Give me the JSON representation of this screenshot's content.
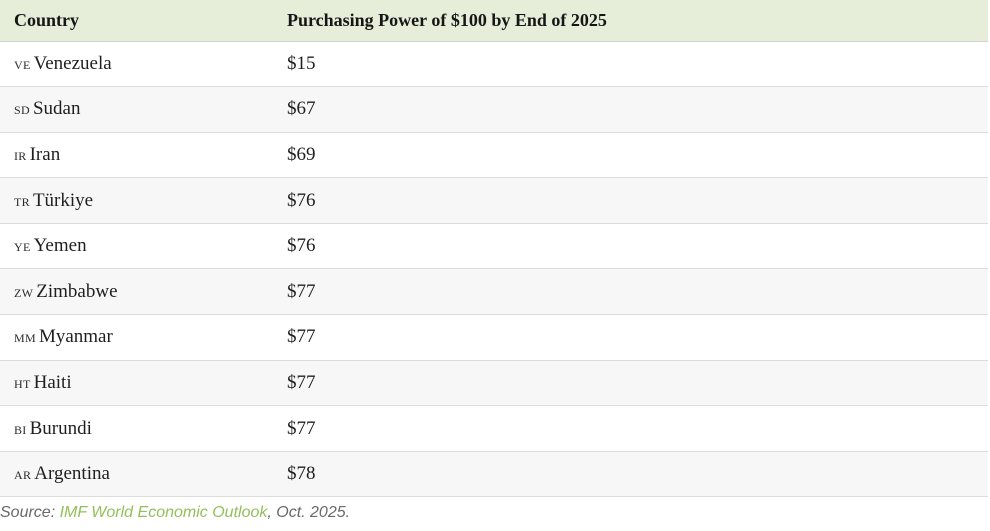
{
  "table": {
    "headers": {
      "country": "Country",
      "value": "Purchasing Power of $100 by End of 2025"
    },
    "rows": [
      {
        "code": "VE",
        "country": "Venezuela",
        "value": "$15"
      },
      {
        "code": "SD",
        "country": "Sudan",
        "value": "$67"
      },
      {
        "code": "IR",
        "country": "Iran",
        "value": "$69"
      },
      {
        "code": "TR",
        "country": "Türkiye",
        "value": "$76"
      },
      {
        "code": "YE",
        "country": "Yemen",
        "value": "$76"
      },
      {
        "code": "ZW",
        "country": "Zimbabwe",
        "value": "$77"
      },
      {
        "code": "MM",
        "country": "Myanmar",
        "value": "$77"
      },
      {
        "code": "HT",
        "country": "Haiti",
        "value": "$77"
      },
      {
        "code": "BI",
        "country": "Burundi",
        "value": "$77"
      },
      {
        "code": "AR",
        "country": "Argentina",
        "value": "$78"
      }
    ]
  },
  "footer": {
    "source_label": "Source: ",
    "link_text": "IMF World Economic Outlook",
    "suffix": ", Oct. 2025."
  },
  "colors": {
    "header_bg": "#e6edd9",
    "row_stripe": "#f7f7f7",
    "row_border": "#dddddd",
    "text": "#1f1f1f",
    "footer_text": "#696969",
    "link_green": "#92c05a"
  },
  "chart_data": {
    "type": "table",
    "title": "Purchasing Power of $100 by End of 2025",
    "columns": [
      "Country",
      "Purchasing Power of $100 by End of 2025"
    ],
    "categories": [
      "Venezuela",
      "Sudan",
      "Iran",
      "Türkiye",
      "Yemen",
      "Zimbabwe",
      "Myanmar",
      "Haiti",
      "Burundi",
      "Argentina"
    ],
    "country_codes": [
      "VE",
      "SD",
      "IR",
      "TR",
      "YE",
      "ZW",
      "MM",
      "HT",
      "BI",
      "AR"
    ],
    "values": [
      15,
      67,
      69,
      76,
      76,
      77,
      77,
      77,
      77,
      78
    ],
    "value_labels": [
      "$15",
      "$67",
      "$69",
      "$76",
      "$76",
      "$77",
      "$77",
      "$77",
      "$77",
      "$78"
    ],
    "unit": "USD",
    "source": "IMF World Economic Outlook, Oct. 2025"
  }
}
